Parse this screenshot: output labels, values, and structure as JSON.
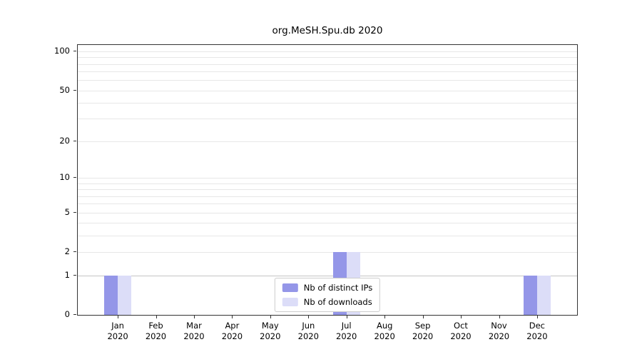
{
  "chart_data": {
    "type": "bar",
    "title": "org.MeSH.Spu.db 2020",
    "year_label": "2020",
    "categories": [
      "Jan",
      "Feb",
      "Mar",
      "Apr",
      "May",
      "Jun",
      "Jul",
      "Aug",
      "Sep",
      "Oct",
      "Nov",
      "Dec"
    ],
    "series": [
      {
        "name": "Nb of distinct IPs",
        "color": "#9496e8",
        "values": [
          1,
          0,
          0,
          0,
          0,
          0,
          2,
          0,
          0,
          0,
          0,
          1
        ]
      },
      {
        "name": "Nb of downloads",
        "color": "#dcddf8",
        "values": [
          1,
          0,
          0,
          0,
          0,
          0,
          2,
          0,
          0,
          0,
          0,
          1
        ]
      }
    ],
    "yscale": "log1p",
    "yticks": [
      0,
      1,
      2,
      5,
      10,
      20,
      50,
      100
    ],
    "gridlines": [
      1,
      2,
      3,
      4,
      5,
      6,
      7,
      8,
      9,
      10,
      20,
      30,
      40,
      50,
      60,
      70,
      80,
      90,
      100
    ],
    "ylim": [
      0,
      112
    ],
    "xlabel": "",
    "ylabel": "",
    "grid": "on",
    "legend": {
      "position": "inside-bottom-center"
    }
  }
}
